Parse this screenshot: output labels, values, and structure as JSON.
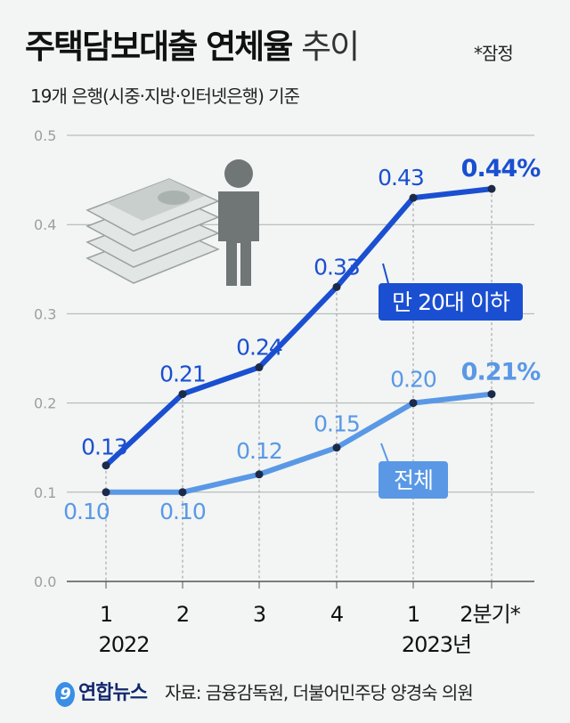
{
  "header": {
    "title_bold": "주택담보대출 연체율",
    "title_light": "추이",
    "note": "*잠정",
    "subtitle": "19개 은행(시중·지방·인터넷은행) 기준"
  },
  "footer": {
    "logo": "연합뉴스",
    "source": "자료: 금융감독원, 더불어민주당 양경숙 의원"
  },
  "chart_data": {
    "type": "line",
    "categories": [
      "1",
      "2",
      "3",
      "4",
      "1",
      "2분기*"
    ],
    "year_labels": [
      {
        "at": 0,
        "label": "2022"
      },
      {
        "at": 4,
        "label": "2023년"
      }
    ],
    "ylim": [
      0,
      0.5
    ],
    "yticks": [
      "0.0",
      "0.1",
      "0.2",
      "0.3",
      "0.4",
      "0.5"
    ],
    "grid": true,
    "series": [
      {
        "name": "만 20대 이하",
        "color": "#1b4fd1",
        "values": [
          0.13,
          0.21,
          0.24,
          0.33,
          0.43,
          0.44
        ],
        "labels": [
          "0.13",
          "0.21",
          "0.24",
          "0.33",
          "0.43",
          "0.44%"
        ]
      },
      {
        "name": "전체",
        "color": "#5a98e6",
        "values": [
          0.1,
          0.1,
          0.12,
          0.15,
          0.2,
          0.21
        ],
        "labels": [
          "0.10",
          "0.10",
          "0.12",
          "0.15",
          "0.20",
          "0.21%"
        ]
      }
    ]
  }
}
